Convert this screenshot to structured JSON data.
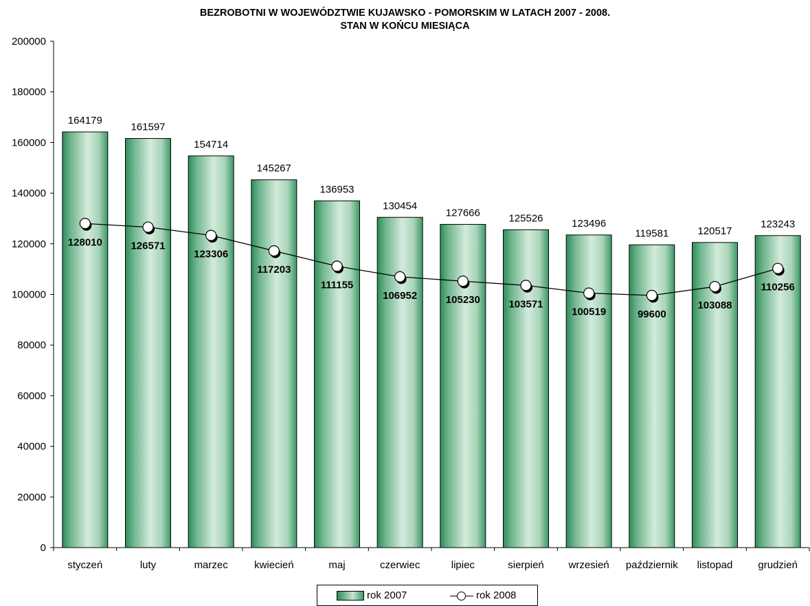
{
  "title_line1": "BEZROBOTNI W WOJEWÓDZTWIE KUJAWSKO - POMORSKIM W LATACH 2007 - 2008.",
  "title_line2": "STAN W KOŃCU MIESIĄCA",
  "legend": {
    "series1": "rok 2007",
    "series2": "rok 2008"
  },
  "colors": {
    "bar_dark": "#2e8b5a",
    "bar_light": "#c8e6d2",
    "line": "#000000"
  },
  "chart_data": {
    "type": "bar",
    "title": "BEZROBOTNI W WOJEWÓDZTWIE KUJAWSKO - POMORSKIM W LATACH 2007 - 2008. STAN W KOŃCU MIESIĄCA",
    "categories": [
      "styczeń",
      "luty",
      "marzec",
      "kwiecień",
      "maj",
      "czerwiec",
      "lipiec",
      "sierpień",
      "wrzesień",
      "październik",
      "listopad",
      "grudzień"
    ],
    "series": [
      {
        "name": "rok 2007",
        "type": "bar",
        "values": [
          164179,
          161597,
          154714,
          145267,
          136953,
          130454,
          127666,
          125526,
          123496,
          119581,
          120517,
          123243
        ]
      },
      {
        "name": "rok 2008",
        "type": "line",
        "values": [
          128010,
          126571,
          123306,
          117203,
          111155,
          106952,
          105230,
          103571,
          100519,
          99600,
          103088,
          110256
        ]
      }
    ],
    "yticks": [
      "0",
      "20000",
      "40000",
      "60000",
      "80000",
      "100000",
      "120000",
      "140000",
      "160000",
      "180000",
      "200000"
    ],
    "ylim": [
      0,
      200000
    ],
    "xlabel": "",
    "ylabel": "",
    "legend_position": "bottom"
  }
}
